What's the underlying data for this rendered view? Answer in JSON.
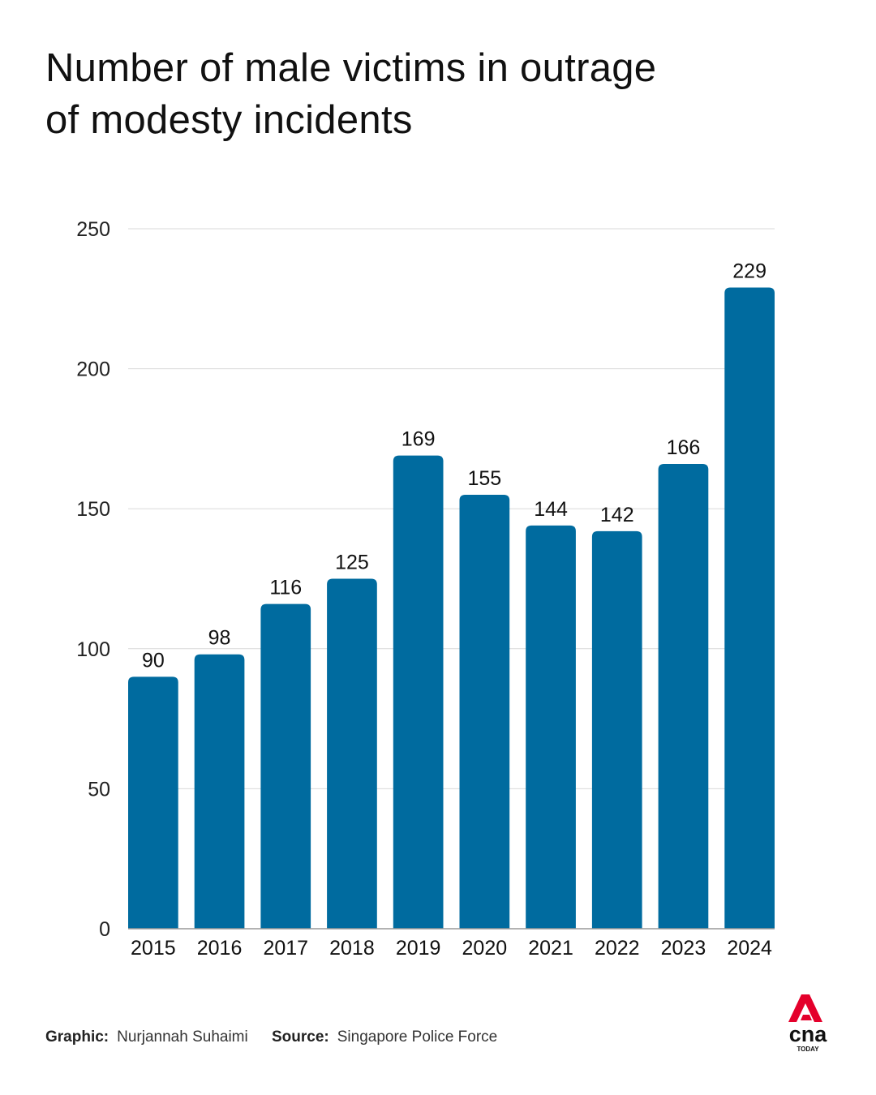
{
  "title_lines": [
    "Number of male victims in outrage",
    "of modesty incidents"
  ],
  "chart_data": {
    "type": "bar",
    "title": "Number of male victims in outrage of modesty incidents",
    "categories": [
      "2015",
      "2016",
      "2017",
      "2018",
      "2019",
      "2020",
      "2021",
      "2022",
      "2023",
      "2024"
    ],
    "values": [
      90,
      98,
      116,
      125,
      169,
      155,
      144,
      142,
      166,
      229
    ],
    "ylim": [
      0,
      250
    ],
    "yticks": [
      0,
      50,
      100,
      150,
      200,
      250
    ],
    "grid": true,
    "bar_color": "#006b9f",
    "data_labels": true
  },
  "footer": {
    "graphic_label": "Graphic:",
    "graphic_value": "Nurjannah Suhaimi",
    "source_label": "Source:",
    "source_value": "Singapore Police Force"
  },
  "logo": {
    "name": "cna-logo",
    "text": "cna",
    "subtext": "TODAY",
    "color": "#e4002b"
  }
}
